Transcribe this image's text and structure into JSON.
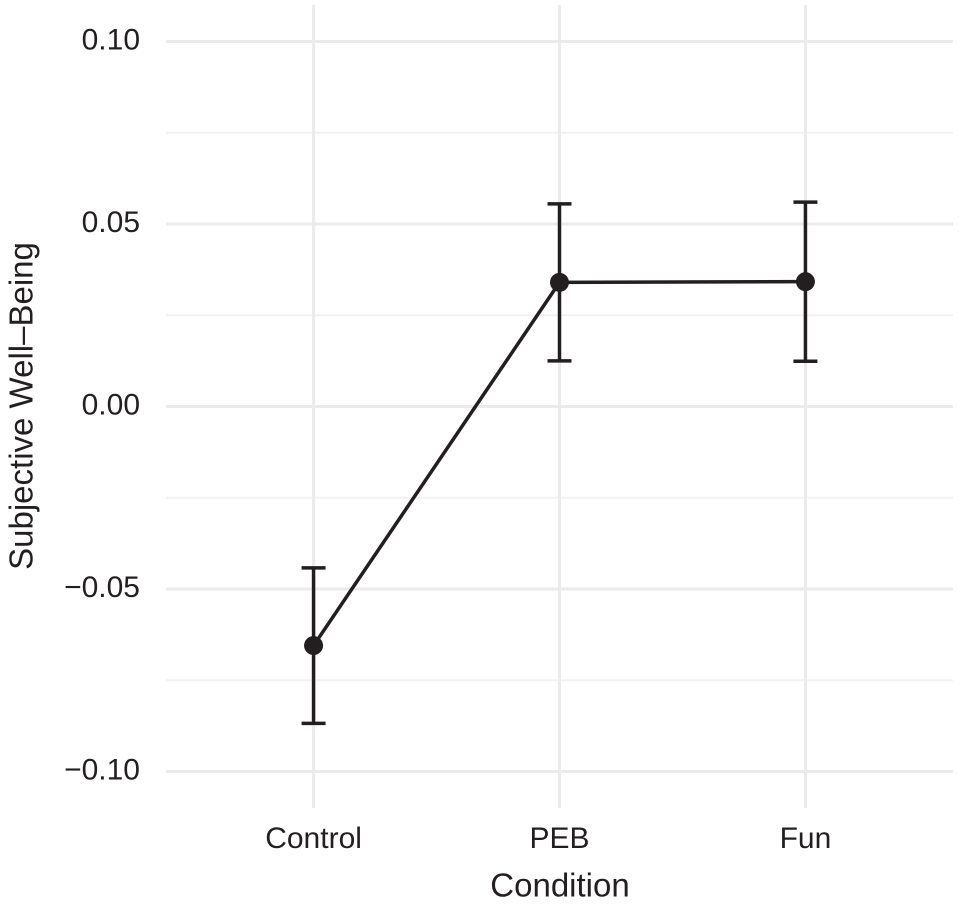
{
  "chart_data": {
    "type": "line",
    "x_label": "Condition",
    "y_label": "Subjective Well–Being",
    "categories": [
      "Control",
      "PEB",
      "Fun"
    ],
    "values": [
      -0.0655,
      0.034,
      0.0342
    ],
    "errors": [
      0.0213,
      0.0215,
      0.0218
    ],
    "color": "#231f20",
    "ylim": [
      -0.11,
      0.11
    ],
    "yticks": [
      {
        "value": -0.1,
        "label": "−0.10"
      },
      {
        "value": -0.05,
        "label": "−0.05"
      },
      {
        "value": 0,
        "label": "0.00"
      },
      {
        "value": 0.05,
        "label": "0.05"
      },
      {
        "value": 0.1,
        "label": "0.10"
      }
    ],
    "yminorticks": [
      -0.075,
      -0.025,
      0.025,
      0.075
    ],
    "grid": true
  }
}
